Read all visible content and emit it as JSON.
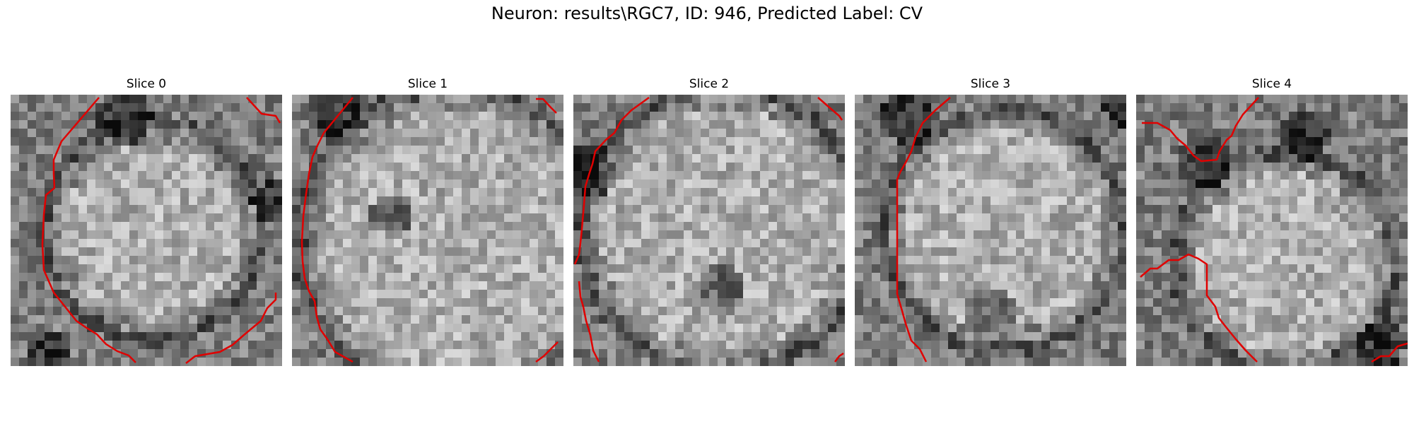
{
  "figure": {
    "title": "Neuron: results\\RGC7, ID: 946, Predicted Label: CV"
  },
  "panels": [
    {
      "title": "Slice 0"
    },
    {
      "title": "Slice 1"
    },
    {
      "title": "Slice 2"
    },
    {
      "title": "Slice 3"
    },
    {
      "title": "Slice 4"
    }
  ],
  "colors": {
    "contour": "#e00000",
    "background": "#ffffff"
  }
}
